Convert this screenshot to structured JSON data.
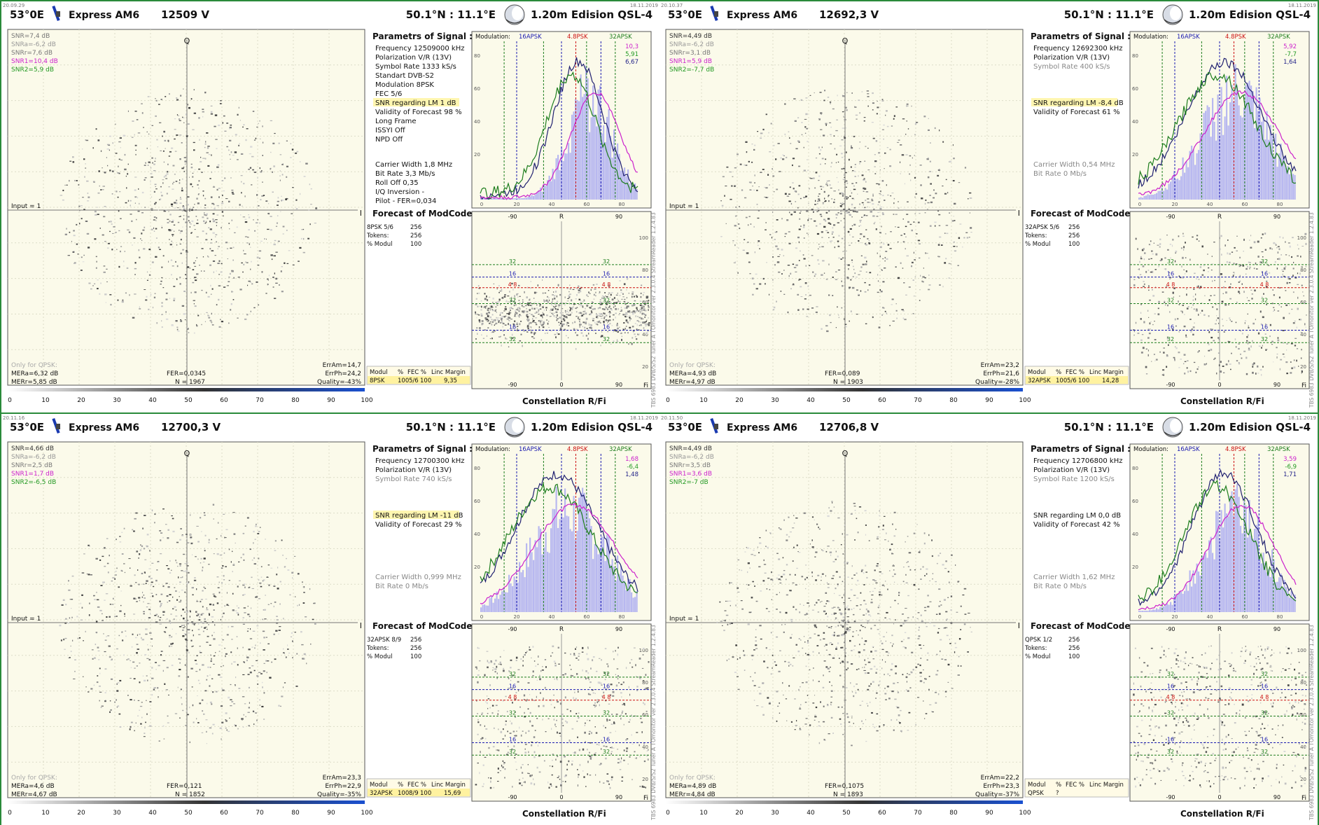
{
  "panels": [
    {
      "time": "20.09.29",
      "date": "18.11.2019",
      "header": {
        "position": "53°0E",
        "satellite": "Express AM6",
        "frequency": "12509  V",
        "coords": "50.1°N : 11.1°E",
        "dish": "1.20m Edision QSL-4"
      },
      "const": {
        "axis_q": "Q",
        "axis_i": "I",
        "input": "Input = 1",
        "snr": [
          {
            "text": "SNR=7,4 dB",
            "color": "#777777"
          },
          {
            "text": "SNRa=-6,2 dB",
            "color": "#999999"
          },
          {
            "text": "SNRr=7,6 dB",
            "color": "#777777"
          },
          {
            "text": "SNR1=10,4 dB",
            "color": "#cc22cc"
          },
          {
            "text": "SNR2=5,9 dB",
            "color": "#229922"
          }
        ],
        "only_qpsk": "Only for QPSK:",
        "mer_a": "MERa=6,32 dB",
        "mer_r": "MERr=5,85 dB",
        "fer": "FER=0,0345",
        "n": "N = 1967",
        "err_am": "ErrAm=14,7",
        "err_ph": "ErrPh=24,2",
        "quality": "Quality=-43%"
      },
      "scale": [
        "0",
        "10",
        "20",
        "30",
        "40",
        "50",
        "60",
        "70",
        "80",
        "90",
        "100"
      ],
      "params": {
        "title": "Parametrs of Signal :",
        "top_rows": [
          {
            "text": "Frequency  12509000 kHz",
            "color": "#111111",
            "hl": false
          },
          {
            "text": "Polarization  V/R (13V)",
            "color": "#111111",
            "hl": false
          },
          {
            "text": "Symbol Rate  1333 kS/s",
            "color": "#111111",
            "hl": false
          },
          {
            "text": "Standart  DVB-S2",
            "color": "#111111",
            "hl": false
          },
          {
            "text": "Modulation  8PSK",
            "color": "#111111",
            "hl": false
          },
          {
            "text": "FEC  5/6",
            "color": "#111111",
            "hl": false
          },
          {
            "text": "SNR regarding LM  1 dB",
            "color": "#111111",
            "hl": true
          },
          {
            "text": "Validity of Forecast  98 %",
            "color": "#111111",
            "hl": false
          },
          {
            "text": "Long  Frame",
            "color": "#111111",
            "hl": false
          },
          {
            "text": "ISSYI  Off",
            "color": "#111111",
            "hl": false
          },
          {
            "text": "NPD  Off",
            "color": "#111111",
            "hl": false
          }
        ],
        "bottom_rows": [
          {
            "text": "Carrier Width  1,8 MHz",
            "color": "#111111"
          },
          {
            "text": "Bit Rate  3,3 Mb/s",
            "color": "#111111"
          },
          {
            "text": "Roll Off  0,35",
            "color": "#111111"
          },
          {
            "text": "I/Q Inversion     -",
            "color": "#111111"
          },
          {
            "text": "Pilot    -      FER=0,034",
            "color": "#111111"
          }
        ]
      },
      "forecast": {
        "title": "Forecast of ModCode",
        "rows": [
          [
            "8PSK 5/6",
            "256"
          ],
          [
            "Tokens:",
            "256"
          ],
          [
            "% Modul",
            "100"
          ]
        ],
        "table_header": [
          "Modul",
          "%",
          "FEC %",
          "Linc Margin"
        ],
        "table_row": [
          "8PSK",
          "100",
          "5/6",
          "100",
          "9,35"
        ]
      },
      "hist": {
        "modulation": "Modulation:",
        "m16": "16APSK",
        "m48": "4.8PSK",
        "m32": "32APSK",
        "snr_vals": [
          {
            "text": "10,3",
            "color": "#cc22cc"
          },
          {
            "text": "5,91",
            "color": "#229922"
          },
          {
            "text": "6,67",
            "color": "#222288"
          }
        ],
        "y_labels": [
          "80",
          "60",
          "40",
          "20"
        ],
        "x_labels": [
          "0",
          "20",
          "40",
          "60",
          "80"
        ],
        "peak": 62,
        "spread": 18,
        "seed": 3
      },
      "scatter": {
        "x_labels": [
          "-90",
          "0",
          "90"
        ],
        "center_label": "R",
        "fi": "Fi",
        "y_labels": [
          "100",
          "80",
          "60",
          "40",
          "20"
        ],
        "level_labels": [
          "32",
          "16",
          "4",
          "8",
          "32",
          "16",
          "32"
        ]
      },
      "footer": {
        "constellation": "Constellation  R/Fi",
        "side_text": "TBS 6983 DVB/S/S2 Tuner A    TOmonitor  ver 2.3.0.4    StreamReader 1.2.4.83"
      }
    },
    {
      "time": "20.10.37",
      "date": "18.11.2019",
      "header": {
        "position": "53°0E",
        "satellite": "Express AM6",
        "frequency": "12692,3  V",
        "coords": "50.1°N : 11.1°E",
        "dish": "1.20m Edision QSL-4"
      },
      "const": {
        "axis_q": "Q",
        "axis_i": "I",
        "input": "Input = 1",
        "snr": [
          {
            "text": "SNR=4,49 dB",
            "color": "#333333"
          },
          {
            "text": "SNRa=-6,2 dB",
            "color": "#999999"
          },
          {
            "text": "SNRr=3,1 dB",
            "color": "#777777"
          },
          {
            "text": "SNR1=5,9 dB",
            "color": "#cc22cc"
          },
          {
            "text": "SNR2=-7,7 dB",
            "color": "#229922"
          }
        ],
        "only_qpsk": "Only for QPSK:",
        "mer_a": "MERa=4,93 dB",
        "mer_r": "MERr=4,97 dB",
        "fer": "FER=0,089",
        "n": "N = 1903",
        "err_am": "ErrAm=23,2",
        "err_ph": "ErrPh=21,6",
        "quality": "Quality=-28%"
      },
      "scale": [
        "0",
        "10",
        "20",
        "30",
        "40",
        "50",
        "60",
        "70",
        "80",
        "90",
        "100"
      ],
      "params": {
        "title": "Parametrs of Signal :",
        "top_rows": [
          {
            "text": "Frequency  12692300 kHz",
            "color": "#111111",
            "hl": false
          },
          {
            "text": "Polarization  V/R (13V)",
            "color": "#111111",
            "hl": false
          },
          {
            "text": "Symbol Rate  400 kS/s",
            "color": "#888888",
            "hl": false
          },
          {
            "text": "",
            "color": "#111111",
            "hl": false
          },
          {
            "text": "",
            "color": "#111111",
            "hl": false
          },
          {
            "text": "",
            "color": "#111111",
            "hl": false
          },
          {
            "text": "SNR regarding LM  -8,4 dB",
            "color": "#111111",
            "hl": true
          },
          {
            "text": "Validity of Forecast  61 %",
            "color": "#111111",
            "hl": false
          }
        ],
        "bottom_rows": [
          {
            "text": "Carrier Width  0,54 MHz",
            "color": "#888888"
          },
          {
            "text": "Bit Rate  0 Mb/s",
            "color": "#888888"
          }
        ]
      },
      "forecast": {
        "title": "Forecast of ModCode",
        "rows": [
          [
            "32APSK 5/6",
            "256"
          ],
          [
            "Tokens:",
            "256"
          ],
          [
            "% Modul",
            "100"
          ]
        ],
        "table_header": [
          "Modul",
          "%",
          "FEC %",
          "Linc Margin"
        ],
        "table_row": [
          "32APSK",
          "100",
          "5/6",
          "100",
          "14,28"
        ]
      },
      "hist": {
        "modulation": "Modulation:",
        "m16": "16APSK",
        "m48": "4.8PSK",
        "m32": "32APSK",
        "snr_vals": [
          {
            "text": "5,92",
            "color": "#cc22cc"
          },
          {
            "text": "-7,7",
            "color": "#229922"
          },
          {
            "text": "1,64",
            "color": "#222288"
          }
        ],
        "y_labels": [
          "80",
          "60",
          "40",
          "20"
        ],
        "x_labels": [
          "0",
          "20",
          "40",
          "60",
          "80"
        ],
        "peak": 55,
        "spread": 28,
        "seed": 7
      },
      "scatter": {
        "x_labels": [
          "-90",
          "0",
          "90"
        ],
        "center_label": "R",
        "fi": "Fi",
        "y_labels": [
          "100",
          "80",
          "60",
          "40",
          "20"
        ],
        "level_labels": [
          "32",
          "16",
          "4",
          "8",
          "32",
          "16",
          "32"
        ]
      },
      "footer": {
        "constellation": "Constellation  R/Fi",
        "side_text": "TBS 6983 DVB/S/S2 Tuner A    TOmonitor  ver 2.3.0.4    StreamReader 1.2.4.83"
      }
    },
    {
      "time": "20.11.16",
      "date": "18.11.2019",
      "header": {
        "position": "53°0E",
        "satellite": "Express AM6",
        "frequency": "12700,3  V",
        "coords": "50.1°N : 11.1°E",
        "dish": "1.20m Edision QSL-4"
      },
      "const": {
        "axis_q": "Q",
        "axis_i": "I",
        "input": "Input = 1",
        "snr": [
          {
            "text": "SNR=4,66 dB",
            "color": "#333333"
          },
          {
            "text": "SNRa=-6,2 dB",
            "color": "#999999"
          },
          {
            "text": "SNRr=2,5 dB",
            "color": "#777777"
          },
          {
            "text": "SNR1=1,7 dB",
            "color": "#cc22cc"
          },
          {
            "text": "SNR2=-6,5 dB",
            "color": "#229922"
          }
        ],
        "only_qpsk": "Only for QPSK:",
        "mer_a": "MERa=4,6 dB",
        "mer_r": "MERr=4,67 dB",
        "fer": "FER=0,121",
        "n": "N = 1852",
        "err_am": "ErrAm=23,3",
        "err_ph": "ErrPh=22,9",
        "quality": "Quality=-35%"
      },
      "scale": [
        "0",
        "10",
        "20",
        "30",
        "40",
        "50",
        "60",
        "70",
        "80",
        "90",
        "100"
      ],
      "params": {
        "title": "Parametrs of Signal :",
        "top_rows": [
          {
            "text": "Frequency  12700300 kHz",
            "color": "#111111",
            "hl": false
          },
          {
            "text": "Polarization  V/R (13V)",
            "color": "#111111",
            "hl": false
          },
          {
            "text": "Symbol Rate  740 kS/s",
            "color": "#888888",
            "hl": false
          },
          {
            "text": "",
            "color": "#111111",
            "hl": false
          },
          {
            "text": "",
            "color": "#111111",
            "hl": false
          },
          {
            "text": "",
            "color": "#111111",
            "hl": false
          },
          {
            "text": "SNR regarding LM  -11 dB",
            "color": "#111111",
            "hl": true
          },
          {
            "text": "Validity of Forecast  29 %",
            "color": "#111111",
            "hl": false
          }
        ],
        "bottom_rows": [
          {
            "text": "Carrier Width  0,999 MHz",
            "color": "#888888"
          },
          {
            "text": "Bit Rate  0 Mb/s",
            "color": "#888888"
          }
        ]
      },
      "forecast": {
        "title": "Forecast of ModCode",
        "rows": [
          [
            "32APSK 8/9",
            "256"
          ],
          [
            "Tokens:",
            "256"
          ],
          [
            "% Modul",
            "100"
          ]
        ],
        "table_header": [
          "Modul",
          "%",
          "FEC %",
          "Linc Margin"
        ],
        "table_row": [
          "32APSK",
          "100",
          "8/9",
          "100",
          "15,69"
        ]
      },
      "hist": {
        "modulation": "Modulation:",
        "m16": "16APSK",
        "m48": "4.8PSK",
        "m32": "32APSK",
        "snr_vals": [
          {
            "text": "1,68",
            "color": "#cc22cc"
          },
          {
            "text": "-6,4",
            "color": "#229922"
          },
          {
            "text": "1,48",
            "color": "#222288"
          }
        ],
        "y_labels": [
          "80",
          "60",
          "40",
          "20"
        ],
        "x_labels": [
          "0",
          "20",
          "40",
          "60",
          "80"
        ],
        "peak": 50,
        "spread": 30,
        "seed": 11
      },
      "scatter": {
        "x_labels": [
          "-90",
          "0",
          "90"
        ],
        "center_label": "R",
        "fi": "Fi",
        "y_labels": [
          "100",
          "80",
          "60",
          "40",
          "20"
        ],
        "level_labels": [
          "32",
          "16",
          "4",
          "8",
          "32",
          "16",
          "32"
        ]
      },
      "footer": {
        "constellation": "Constellation  R/Fi",
        "side_text": "TBS 6983 DVB/S/S2 Tuner A    TOmonitor  ver 2.3.0.4    StreamReader 1.2.4.83"
      }
    },
    {
      "time": "20.11.50",
      "date": "18.11.2019",
      "header": {
        "position": "53°0E",
        "satellite": "Express AM6",
        "frequency": "12706,8  V",
        "coords": "50.1°N : 11.1°E",
        "dish": "1.20m Edision QSL-4"
      },
      "const": {
        "axis_q": "Q",
        "axis_i": "I",
        "input": "Input = 1",
        "snr": [
          {
            "text": "SNR=4,49 dB",
            "color": "#333333"
          },
          {
            "text": "SNRa=-6,2 dB",
            "color": "#999999"
          },
          {
            "text": "SNRr=3,5 dB",
            "color": "#777777"
          },
          {
            "text": "SNR1=3,6 dB",
            "color": "#cc22cc"
          },
          {
            "text": "SNR2=-7 dB",
            "color": "#229922"
          }
        ],
        "only_qpsk": "Only for QPSK:",
        "mer_a": "MERa=4,89 dB",
        "mer_r": "MERr=4,84 dB",
        "fer": "FER=0,1075",
        "n": "N = 1893",
        "err_am": "ErrAm=22,2",
        "err_ph": "ErrPh=23,3",
        "quality": "Quality=-37%"
      },
      "scale": [
        "0",
        "10",
        "20",
        "30",
        "40",
        "50",
        "60",
        "70",
        "80",
        "90",
        "100"
      ],
      "params": {
        "title": "Parametrs of Signal :",
        "top_rows": [
          {
            "text": "Frequency  12706800 kHz",
            "color": "#111111",
            "hl": false
          },
          {
            "text": "Polarization  V/R (13V)",
            "color": "#111111",
            "hl": false
          },
          {
            "text": "Symbol Rate  1200 kS/s",
            "color": "#888888",
            "hl": false
          },
          {
            "text": "",
            "color": "#111111",
            "hl": false
          },
          {
            "text": "",
            "color": "#111111",
            "hl": false
          },
          {
            "text": "",
            "color": "#111111",
            "hl": false
          },
          {
            "text": "SNR regarding LM  0,0 dB",
            "color": "#111111",
            "hl": false
          },
          {
            "text": "Validity of Forecast  42 %",
            "color": "#111111",
            "hl": false
          }
        ],
        "bottom_rows": [
          {
            "text": "Carrier Width  1,62 MHz",
            "color": "#888888"
          },
          {
            "text": "Bit Rate  0 Mb/s",
            "color": "#888888"
          }
        ]
      },
      "forecast": {
        "title": "Forecast of ModCode",
        "rows": [
          [
            "QPSK 1/2",
            "256"
          ],
          [
            "Tokens:",
            "256"
          ],
          [
            "% Modul",
            "100"
          ]
        ],
        "table_header": [
          "Modul",
          "%",
          "FEC %",
          "Linc Margin"
        ],
        "table_row": [
          "QPSK",
          "?",
          "",
          "",
          ""
        ]
      },
      "hist": {
        "modulation": "Modulation:",
        "m16": "16APSK",
        "m48": "4.8PSK",
        "m32": "32APSK",
        "snr_vals": [
          {
            "text": "3,59",
            "color": "#cc22cc"
          },
          {
            "text": "-6,9",
            "color": "#229922"
          },
          {
            "text": "1,71",
            "color": "#222288"
          }
        ],
        "y_labels": [
          "80",
          "60",
          "40",
          "20"
        ],
        "x_labels": [
          "0",
          "20",
          "40",
          "60",
          "80"
        ],
        "peak": 55,
        "spread": 24,
        "seed": 19
      },
      "scatter": {
        "x_labels": [
          "-90",
          "0",
          "90"
        ],
        "center_label": "R",
        "fi": "Fi",
        "y_labels": [
          "100",
          "80",
          "60",
          "40",
          "20"
        ],
        "level_labels": [
          "32",
          "16",
          "4",
          "8",
          "32",
          "16",
          "32"
        ]
      },
      "footer": {
        "constellation": "Constellation  R/Fi",
        "side_text": "TBS 6983 DVB/S/S2 Tuner A    TOmonitor  ver 2.3.0.4    StreamReader 1.2.4.83"
      }
    }
  ],
  "colors": {
    "panel_bg": "#fbfaea",
    "frame": "#2a8a3a",
    "blue": "#1a1ab0",
    "green": "#1d7d1d",
    "magenta": "#cc22cc",
    "red": "#cc1111",
    "bar": "#b8b8f0"
  }
}
